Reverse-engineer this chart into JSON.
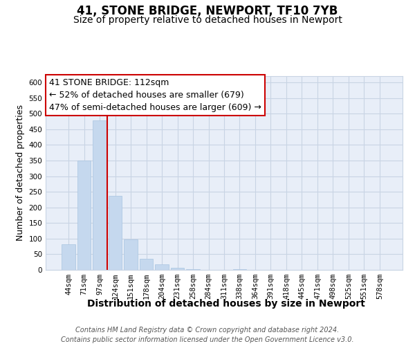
{
  "title": "41, STONE BRIDGE, NEWPORT, TF10 7YB",
  "subtitle": "Size of property relative to detached houses in Newport",
  "xlabel": "Distribution of detached houses by size in Newport",
  "ylabel": "Number of detached properties",
  "bar_labels": [
    "44sqm",
    "71sqm",
    "97sqm",
    "124sqm",
    "151sqm",
    "178sqm",
    "204sqm",
    "231sqm",
    "258sqm",
    "284sqm",
    "311sqm",
    "338sqm",
    "364sqm",
    "391sqm",
    "418sqm",
    "445sqm",
    "471sqm",
    "498sqm",
    "525sqm",
    "551sqm",
    "578sqm"
  ],
  "bar_values": [
    83,
    350,
    479,
    236,
    97,
    35,
    18,
    7,
    2,
    0,
    0,
    2,
    0,
    0,
    0,
    0,
    0,
    1,
    0,
    0,
    1
  ],
  "bar_color": "#c5d8ee",
  "bar_edge_color": "#a8c4e0",
  "grid_color": "#c8d4e4",
  "background_color": "#ffffff",
  "plot_bg_color": "#e8eef8",
  "vline_x": 2.5,
  "vline_color": "#cc0000",
  "annotation_line1": "41 STONE BRIDGE: 112sqm",
  "annotation_line2": "← 52% of detached houses are smaller (679)",
  "annotation_line3": "47% of semi-detached houses are larger (609) →",
  "annotation_box_color": "#ffffff",
  "annotation_box_edge": "#cc0000",
  "ylim": [
    0,
    620
  ],
  "yticks": [
    0,
    50,
    100,
    150,
    200,
    250,
    300,
    350,
    400,
    450,
    500,
    550,
    600
  ],
  "footer_line1": "Contains HM Land Registry data © Crown copyright and database right 2024.",
  "footer_line2": "Contains public sector information licensed under the Open Government Licence v3.0.",
  "title_fontsize": 12,
  "subtitle_fontsize": 10,
  "xlabel_fontsize": 10,
  "ylabel_fontsize": 9,
  "tick_fontsize": 7.5,
  "annotation_fontsize": 9,
  "footer_fontsize": 7
}
